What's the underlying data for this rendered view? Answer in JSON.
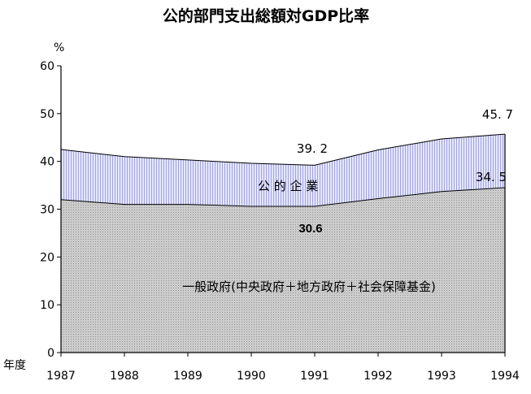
{
  "chart_data": {
    "type": "area",
    "title": "公的部門支出総額対GDP比率",
    "ylabel": "%",
    "xlabel": "年度",
    "ylim": [
      0,
      60
    ],
    "yticks": [
      0,
      10,
      20,
      30,
      40,
      50,
      60
    ],
    "grid": false,
    "categories": [
      "1987",
      "1988",
      "1989",
      "1990",
      "1991",
      "1992",
      "1993",
      "1994"
    ],
    "x": [
      1987,
      1988,
      1989,
      1990,
      1991,
      1992,
      1993,
      1994
    ],
    "series": [
      {
        "name": "一般政府(中央政府＋地方政府＋社会保障基金)",
        "values": [
          32.0,
          31.0,
          31.0,
          30.6,
          30.6,
          32.2,
          33.7,
          34.5
        ]
      },
      {
        "name": "公 的 企 業",
        "values": [
          10.5,
          10.0,
          9.3,
          9.0,
          8.6,
          10.2,
          11.0,
          11.2
        ]
      }
    ],
    "totals": [
      42.5,
      41.0,
      40.3,
      39.6,
      39.2,
      42.4,
      44.7,
      45.7
    ],
    "annotations": {
      "total_1991": "39. 2",
      "total_1994": "45. 7",
      "general_1991": "30.6",
      "general_1994": "34. 5"
    },
    "colors": {
      "general_fill": "#c8c8c8",
      "public_fill": "#c6c8f4",
      "public_line": "#9a9ee6"
    }
  }
}
